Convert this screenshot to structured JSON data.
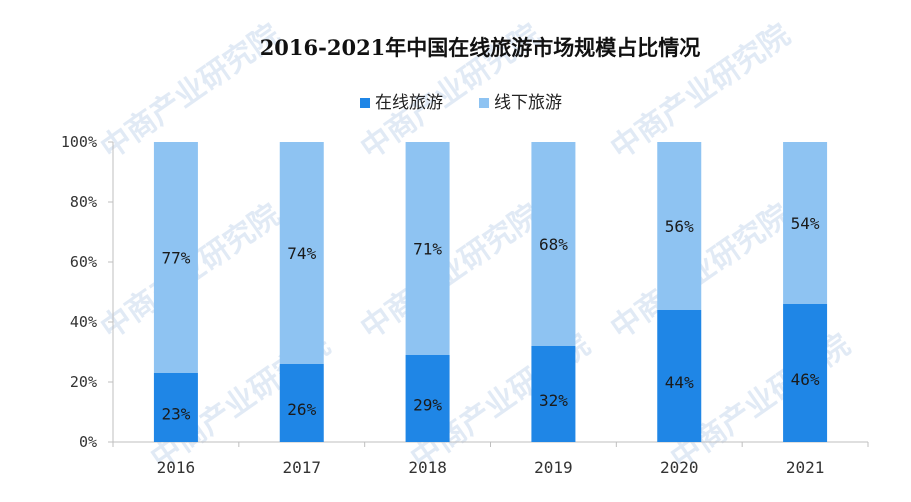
{
  "chart_data": {
    "type": "bar",
    "stacked": true,
    "title": "2016-2021年中国在线旅游市场规模占比情况",
    "categories": [
      "2016",
      "2017",
      "2018",
      "2019",
      "2020",
      "2021"
    ],
    "series": [
      {
        "name": "在线旅游",
        "values": [
          23,
          26,
          29,
          32,
          44,
          46
        ],
        "labels": [
          "23%",
          "26%",
          "29%",
          "32%",
          "44%",
          "46%"
        ],
        "color": "#1f86e6"
      },
      {
        "name": "线下旅游",
        "values": [
          77,
          74,
          71,
          68,
          56,
          54
        ],
        "labels": [
          "77%",
          "74%",
          "71%",
          "68%",
          "56%",
          "54%"
        ],
        "color": "#8ec3f2"
      }
    ],
    "yticks": [
      "0%",
      "20%",
      "40%",
      "60%",
      "80%",
      "100%"
    ],
    "ylim": [
      0,
      100
    ],
    "grid": false,
    "legend_position": "top-center"
  },
  "watermark": "中商产业研究院"
}
